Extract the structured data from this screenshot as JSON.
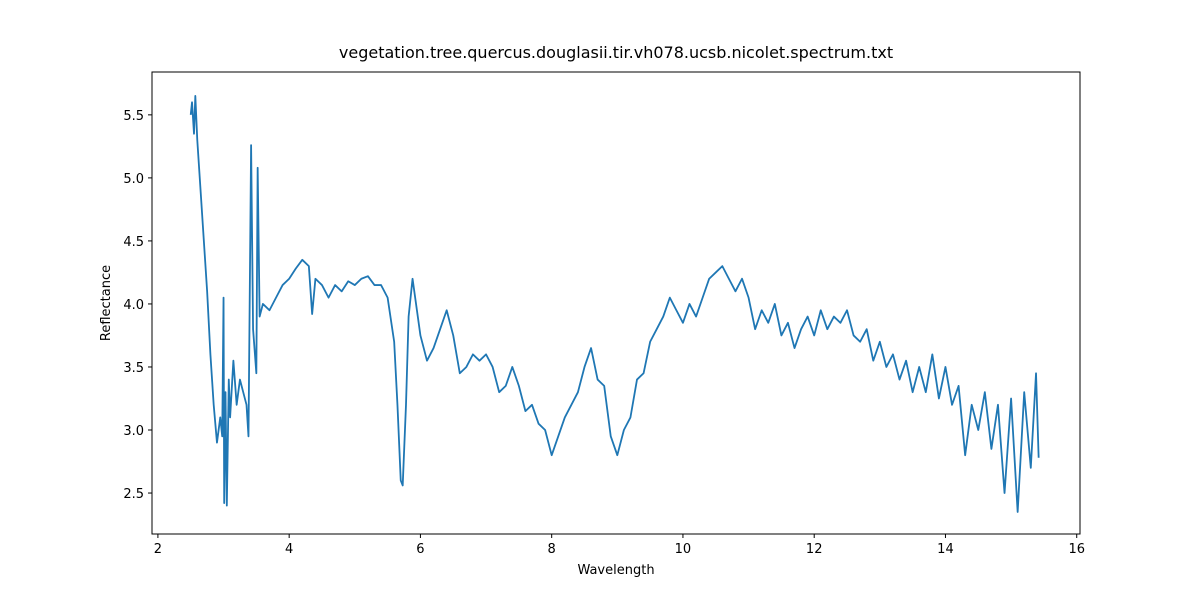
{
  "chart_data": {
    "type": "line",
    "title": "vegetation.tree.quercus.douglasii.tir.vh078.ucsb.nicolet.spectrum.txt",
    "x_label": "Wavelength",
    "y_label": "Reflectance",
    "xlim": [
      1.91,
      16.05
    ],
    "ylim": [
      2.175,
      5.84
    ],
    "xticks": [
      2,
      4,
      6,
      8,
      10,
      12,
      14,
      16
    ],
    "yticks": [
      {
        "value": 2.5,
        "label": "2.5"
      },
      {
        "value": 3.0,
        "label": "3.0"
      },
      {
        "value": 3.5,
        "label": "3.5"
      },
      {
        "value": 4.0,
        "label": "4.0"
      },
      {
        "value": 4.5,
        "label": "4.5"
      },
      {
        "value": 5.0,
        "label": "5.0"
      },
      {
        "value": 5.5,
        "label": "5.5"
      }
    ],
    "grid": false,
    "x": [
      2.5,
      2.52,
      2.55,
      2.57,
      2.6,
      2.65,
      2.7,
      2.75,
      2.8,
      2.85,
      2.9,
      2.95,
      2.98,
      3.0,
      3.01,
      3.03,
      3.05,
      3.08,
      3.1,
      3.15,
      3.2,
      3.25,
      3.3,
      3.35,
      3.38,
      3.42,
      3.45,
      3.5,
      3.52,
      3.55,
      3.6,
      3.7,
      3.8,
      3.9,
      4.0,
      4.1,
      4.2,
      4.3,
      4.35,
      4.4,
      4.5,
      4.6,
      4.7,
      4.8,
      4.9,
      5.0,
      5.1,
      5.2,
      5.3,
      5.4,
      5.5,
      5.6,
      5.65,
      5.7,
      5.73,
      5.78,
      5.82,
      5.88,
      5.92,
      6.0,
      6.1,
      6.2,
      6.3,
      6.4,
      6.5,
      6.6,
      6.7,
      6.8,
      6.9,
      7.0,
      7.1,
      7.2,
      7.3,
      7.4,
      7.5,
      7.6,
      7.7,
      7.8,
      7.9,
      8.0,
      8.1,
      8.2,
      8.3,
      8.4,
      8.5,
      8.6,
      8.7,
      8.8,
      8.9,
      9.0,
      9.1,
      9.2,
      9.3,
      9.4,
      9.5,
      9.6,
      9.7,
      9.8,
      9.9,
      10.0,
      10.1,
      10.2,
      10.3,
      10.4,
      10.5,
      10.6,
      10.7,
      10.8,
      10.9,
      11.0,
      11.1,
      11.2,
      11.3,
      11.4,
      11.5,
      11.6,
      11.7,
      11.8,
      11.9,
      12.0,
      12.1,
      12.2,
      12.3,
      12.4,
      12.5,
      12.6,
      12.7,
      12.8,
      12.9,
      13.0,
      13.1,
      13.2,
      13.3,
      13.4,
      13.5,
      13.6,
      13.7,
      13.8,
      13.9,
      14.0,
      14.1,
      14.2,
      14.3,
      14.4,
      14.5,
      14.6,
      14.7,
      14.8,
      14.9,
      15.0,
      15.1,
      15.2,
      15.3,
      15.38,
      15.42
    ],
    "series": [
      {
        "name": "Reflectance",
        "color": "#1f77b4",
        "values": [
          5.5,
          5.6,
          5.35,
          5.65,
          5.3,
          4.9,
          4.5,
          4.1,
          3.6,
          3.2,
          2.9,
          3.1,
          2.95,
          4.05,
          2.42,
          3.3,
          2.4,
          3.4,
          3.1,
          3.55,
          3.2,
          3.4,
          3.3,
          3.2,
          2.95,
          5.26,
          3.8,
          3.45,
          5.08,
          3.9,
          4.0,
          3.95,
          4.05,
          4.15,
          4.2,
          4.28,
          4.35,
          4.3,
          3.92,
          4.2,
          4.15,
          4.05,
          4.15,
          4.1,
          4.18,
          4.15,
          4.2,
          4.22,
          4.15,
          4.15,
          4.05,
          3.7,
          3.2,
          2.6,
          2.56,
          3.2,
          3.9,
          4.2,
          4.05,
          3.75,
          3.55,
          3.65,
          3.8,
          3.95,
          3.75,
          3.45,
          3.5,
          3.6,
          3.55,
          3.6,
          3.5,
          3.3,
          3.35,
          3.5,
          3.35,
          3.15,
          3.2,
          3.05,
          3.0,
          2.8,
          2.95,
          3.1,
          3.2,
          3.3,
          3.5,
          3.65,
          3.4,
          3.35,
          2.95,
          2.8,
          3.0,
          3.1,
          3.4,
          3.45,
          3.7,
          3.8,
          3.9,
          4.05,
          3.95,
          3.85,
          4.0,
          3.9,
          4.05,
          4.2,
          4.25,
          4.3,
          4.2,
          4.1,
          4.2,
          4.05,
          3.8,
          3.95,
          3.85,
          4.0,
          3.75,
          3.85,
          3.65,
          3.8,
          3.9,
          3.75,
          3.95,
          3.8,
          3.9,
          3.85,
          3.95,
          3.75,
          3.7,
          3.8,
          3.55,
          3.7,
          3.5,
          3.6,
          3.4,
          3.55,
          3.3,
          3.5,
          3.3,
          3.6,
          3.25,
          3.5,
          3.2,
          3.35,
          2.8,
          3.2,
          3.0,
          3.3,
          2.85,
          3.2,
          2.5,
          3.25,
          2.35,
          3.3,
          2.7,
          3.45,
          2.78
        ]
      }
    ]
  }
}
